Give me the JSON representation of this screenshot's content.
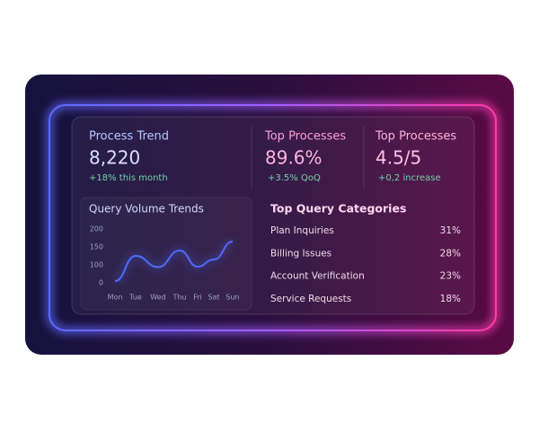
{
  "stats": [
    {
      "title": "Process Trend",
      "value": "8,220",
      "change": "+18% this month"
    },
    {
      "title": "Top Processes",
      "value": "89.6%",
      "change": "+3.5% QoQ"
    },
    {
      "title": "Top Processes",
      "value": "4.5/5",
      "change": "+0,2 increase"
    }
  ],
  "chart_data": {
    "type": "line",
    "title": "Query Volume Trends",
    "categories": [
      "Mon",
      "Tue",
      "Wed",
      "Thu",
      "Fri",
      "Sat",
      "Sun"
    ],
    "values": [
      10,
      125,
      88,
      140,
      90,
      115,
      165
    ],
    "color": "#4f6bff",
    "ylim": [
      0,
      200
    ],
    "yticks": [
      0,
      100,
      150,
      200
    ]
  },
  "table": {
    "title": "Top Query Categories",
    "rows": [
      [
        "Plan Inquiries",
        "31%"
      ],
      [
        "Billing Issues",
        "28%"
      ],
      [
        "Account Verification",
        "23%"
      ],
      [
        "Service Requests",
        "18%"
      ]
    ]
  }
}
